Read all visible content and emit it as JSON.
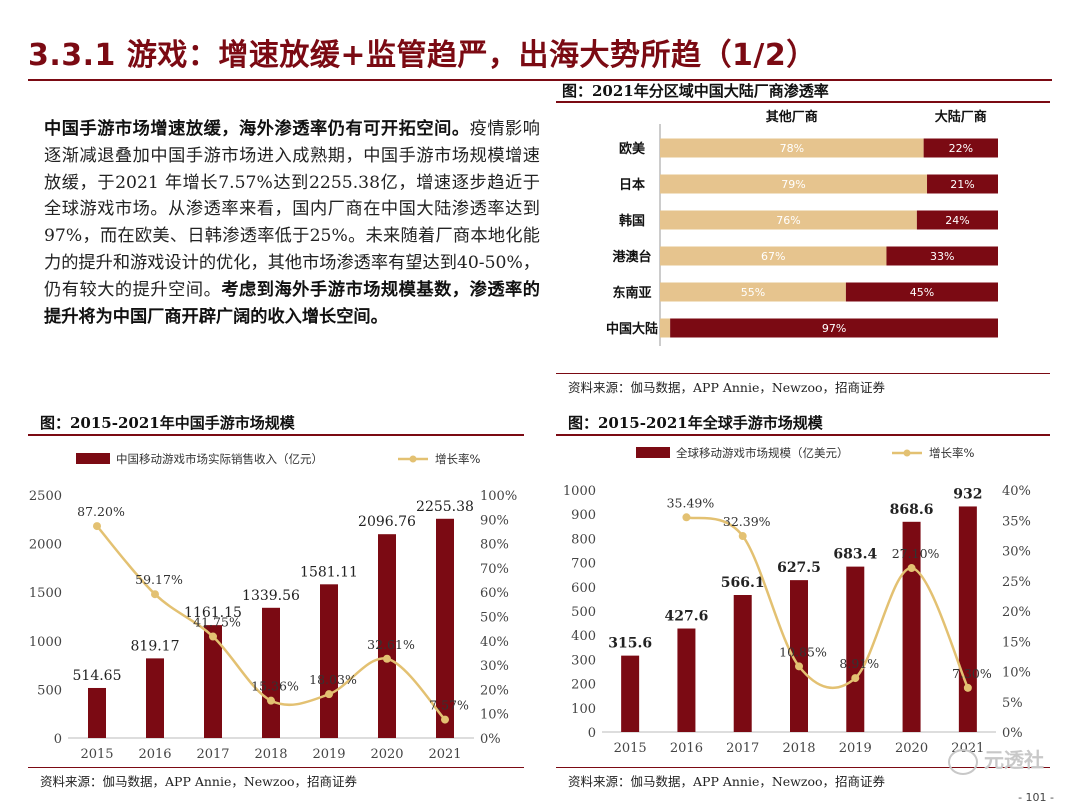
{
  "page": {
    "title": "3.3.1 游戏：增速放缓+监管趋严，出海大势所趋（1/2）",
    "page_number": "- 101 -",
    "watermark": "元透社"
  },
  "body": {
    "bold_lead": "中国手游市场增速放缓，海外渗透率仍有可开拓空间。",
    "text": "疫情影响逐渐减退叠加中国手游市场进入成熟期，中国手游市场规模增速放缓，于2021 年增长7.57%达到2255.38亿，增速逐步趋近于全球游戏市场。从渗透率来看，国内厂商在中国大陆渗透率达到97%，而在欧美、日韩渗透率低于25%。未来随着厂商本地化能力的提升和游戏设计的优化，其他市场渗透率有望达到40-50%，仍有较大的提升空间。",
    "bold_tail": "考虑到海外手游市场规模基数，渗透率的提升将为中国厂商开辟广阔的收入增长空间。"
  },
  "colors": {
    "dark_red": "#7b0a13",
    "tan": "#e6c48e",
    "line_gold": "#e3c172"
  },
  "chart_data": [
    {
      "id": "penetration",
      "type": "bar",
      "stacked": true,
      "orientation": "horizontal",
      "title": "图：2021年分区域中国大陆厂商渗透率",
      "categories": [
        "欧美",
        "日本",
        "韩国",
        "港澳台",
        "东南亚",
        "中国大陆"
      ],
      "series": [
        {
          "name": "其他厂商",
          "values": [
            78,
            79,
            76,
            67,
            55,
            3
          ],
          "labels": [
            "78%",
            "79%",
            "76%",
            "67%",
            "55%",
            ""
          ]
        },
        {
          "name": "大陆厂商",
          "values": [
            22,
            21,
            24,
            33,
            45,
            97
          ],
          "labels": [
            "22%",
            "21%",
            "24%",
            "33%",
            "45%",
            "97%"
          ]
        }
      ],
      "xlim": [
        0,
        100
      ],
      "source": "资料来源：伽马数据，APP Annie，Newzoo，招商证券"
    },
    {
      "id": "china",
      "type": "bar",
      "title": "图：2015-2021年中国手游市场规模",
      "categories": [
        "2015",
        "2016",
        "2017",
        "2018",
        "2019",
        "2020",
        "2021"
      ],
      "series": [
        {
          "name": "中国移动游戏市场实际销售收入（亿元）",
          "values": [
            514.65,
            819.17,
            1161.15,
            1339.56,
            1581.11,
            2096.76,
            2255.38
          ],
          "labels": [
            "514.65",
            "819.17",
            "1161.15",
            "1339.56",
            "1581.11",
            "2096.76",
            "2255.38"
          ]
        },
        {
          "name": "增长率%",
          "type": "line",
          "values": [
            87.2,
            59.17,
            41.75,
            15.36,
            18.03,
            32.61,
            7.57
          ],
          "labels": [
            "87.20%",
            "59.17%",
            "41.75%",
            "15.36%",
            "18.03%",
            "32.61%",
            "7.57%"
          ]
        }
      ],
      "ylim": [
        0,
        2500
      ],
      "yticks": [
        "0",
        "500",
        "1000",
        "1500",
        "2000",
        "2500"
      ],
      "y2lim": [
        0,
        100
      ],
      "y2ticks": [
        "0%",
        "10%",
        "20%",
        "30%",
        "40%",
        "50%",
        "60%",
        "70%",
        "80%",
        "90%",
        "100%"
      ],
      "source": "资料来源：伽马数据，APP Annie，Newzoo，招商证券"
    },
    {
      "id": "global",
      "type": "bar",
      "title": "图：2015-2021年全球手游市场规模",
      "categories": [
        "2015",
        "2016",
        "2017",
        "2018",
        "2019",
        "2020",
        "2021"
      ],
      "series": [
        {
          "name": "全球移动游戏市场规模（亿美元）",
          "values": [
            315.6,
            427.6,
            566.1,
            627.5,
            683.4,
            868.6,
            932
          ],
          "labels": [
            "315.6",
            "427.6",
            "566.1",
            "627.5",
            "683.4",
            "868.6",
            "932"
          ]
        },
        {
          "name": "增长率%",
          "type": "line",
          "values": [
            null,
            35.49,
            32.39,
            10.85,
            8.91,
            27.1,
            7.3
          ],
          "labels": [
            "",
            "35.49%",
            "32.39%",
            "10.85%",
            "8.91%",
            "27.10%",
            "7.30%"
          ]
        }
      ],
      "ylim": [
        0,
        1000
      ],
      "yticks": [
        "0",
        "100",
        "200",
        "300",
        "400",
        "500",
        "600",
        "700",
        "800",
        "900",
        "1000"
      ],
      "y2lim": [
        0,
        40
      ],
      "y2ticks": [
        "0%",
        "5%",
        "10%",
        "15%",
        "20%",
        "25%",
        "30%",
        "35%",
        "40%"
      ],
      "source": "资料来源：伽马数据，APP Annie，Newzoo，招商证券"
    }
  ]
}
